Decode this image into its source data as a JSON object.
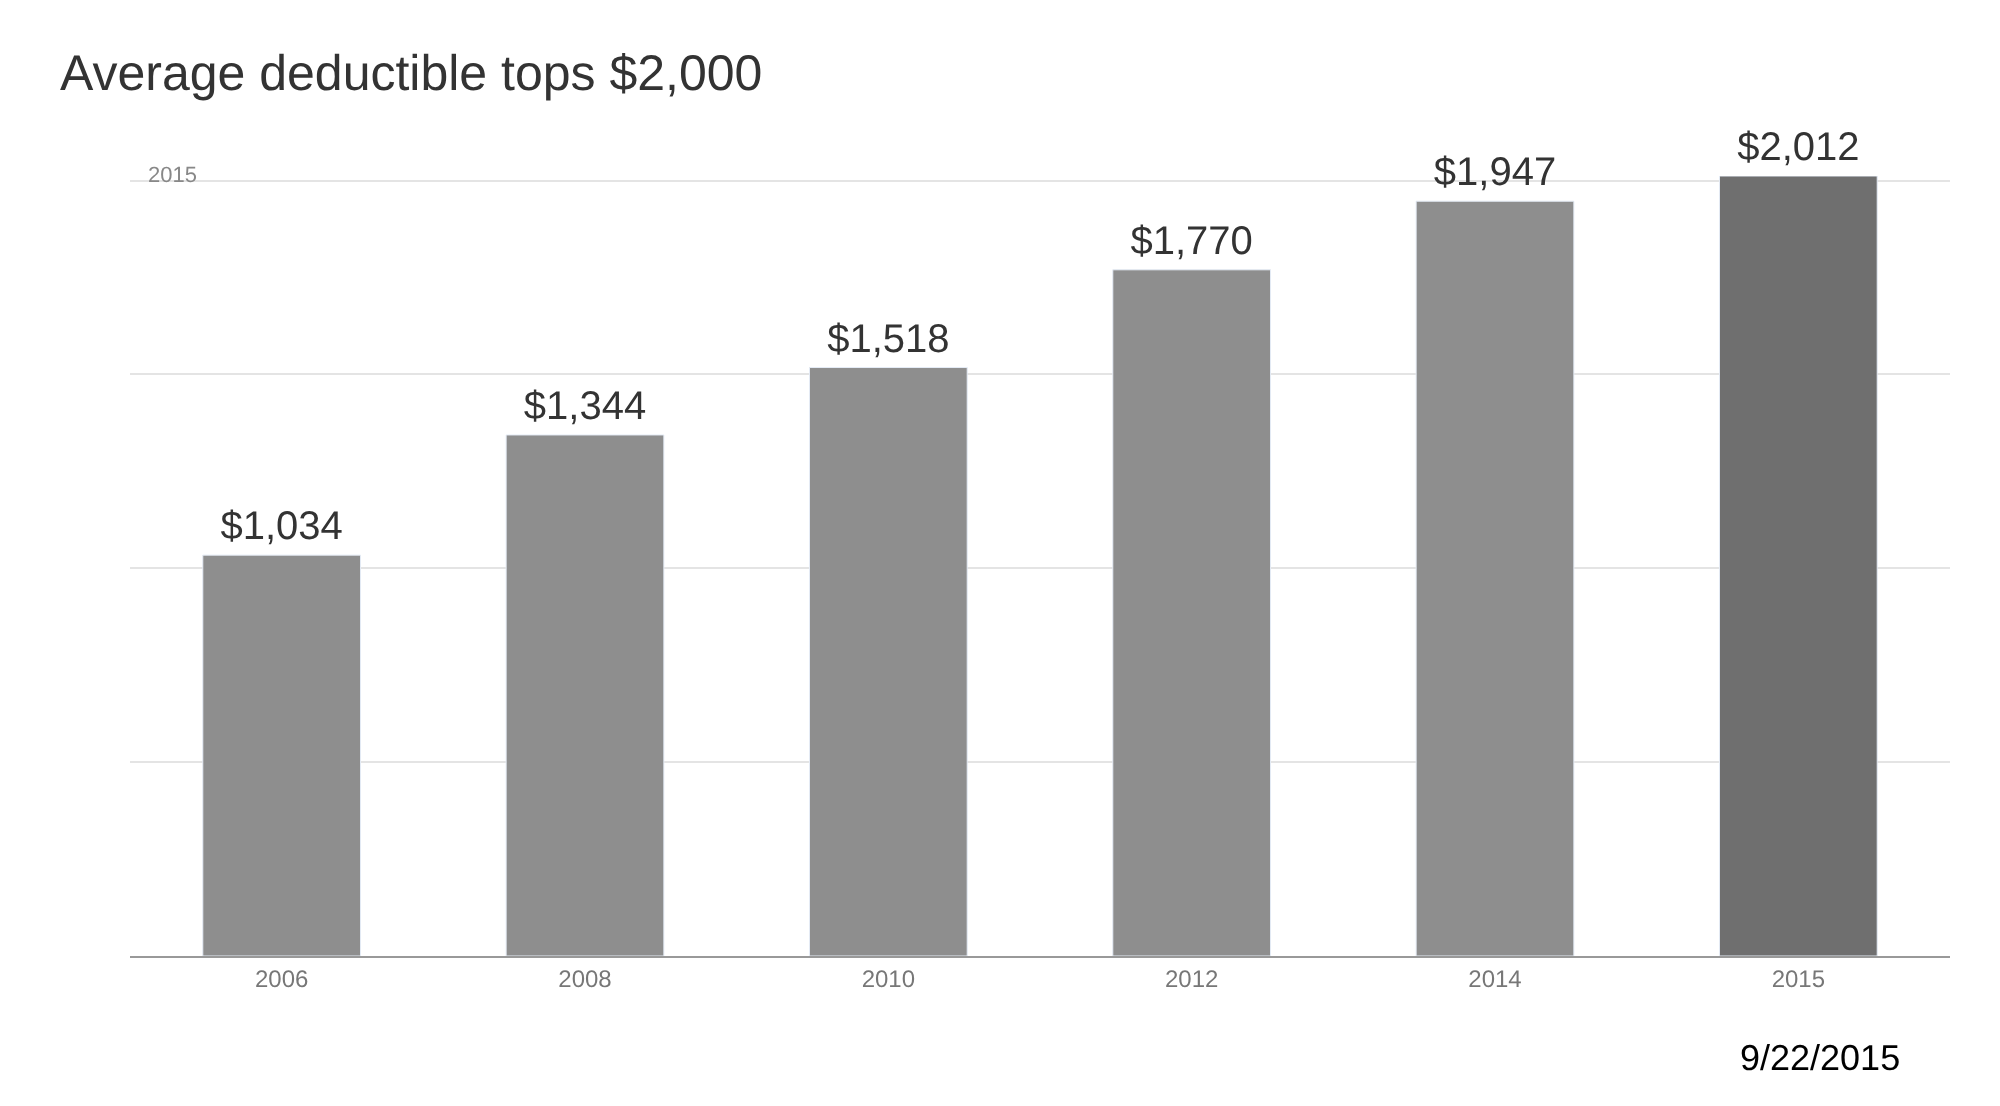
{
  "chart_data": {
    "type": "bar",
    "title": "Average deductible tops $2,000",
    "categories": [
      "2006",
      "2008",
      "2010",
      "2012",
      "2014",
      "2015"
    ],
    "values": [
      1034,
      1344,
      1518,
      1770,
      1947,
      2012
    ],
    "value_labels": [
      "$1,034",
      "$1,344",
      "$1,518",
      "$1,770",
      "$1,947",
      "$2,012"
    ],
    "colors": [
      "#8e8e8e",
      "#8e8e8e",
      "#8e8e8e",
      "#8e8e8e",
      "#8e8e8e",
      "#6f6f6f"
    ],
    "ylim": [
      0,
      2012
    ],
    "grid": "y",
    "tick_labels": "x",
    "annotations": [
      "2015",
      "9/22/2015"
    ]
  }
}
